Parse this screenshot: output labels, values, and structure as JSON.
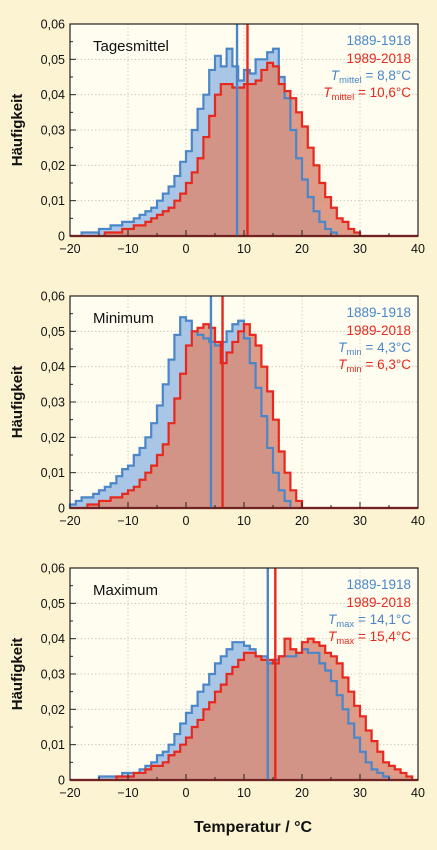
{
  "colors": {
    "period_1": "#4a86c8",
    "period_2": "#e8281e",
    "fill_1": "#a9c6e6",
    "fill_2": "#d88b75",
    "background": "#fbf3d2",
    "plot_background": "#fffdf0"
  },
  "xlabel": "Temperatur / °C",
  "chart_data": [
    {
      "type": "histogram",
      "panel_title": "Tagesmittel",
      "ylabel": "Häufigkeit",
      "xlim": [
        -20,
        40
      ],
      "ylim": [
        0,
        0.06
      ],
      "xticks": [
        "−20",
        "−10",
        "0",
        "10",
        "20",
        "30",
        "40"
      ],
      "yticks": [
        "0",
        "0,01",
        "0,02",
        "0,03",
        "0,04",
        "0,05",
        "0,06"
      ],
      "legend": {
        "line1": "1889-1918",
        "line2": "1989-2018",
        "sym": "T",
        "sub": "mittel",
        "mean1_text": " = 8,8°C",
        "mean2_text": " = 10,6°C"
      },
      "bin_start": -20,
      "bin_width": 1,
      "series": [
        {
          "values": [
            0,
            0,
            0.001,
            0.001,
            0.001,
            0.002,
            0.002,
            0.003,
            0.003,
            0.004,
            0.004,
            0.005,
            0.006,
            0.007,
            0.008,
            0.01,
            0.012,
            0.014,
            0.017,
            0.021,
            0.024,
            0.03,
            0.036,
            0.04,
            0.047,
            0.051,
            0.048,
            0.053,
            0.048,
            0.044,
            0.047,
            0.046,
            0.05,
            0.05,
            0.052,
            0.053,
            0.045,
            0.039,
            0.03,
            0.022,
            0.016,
            0.011,
            0.007,
            0.004,
            0.002,
            0.001,
            0,
            0,
            0,
            0,
            0,
            0,
            0,
            0,
            0,
            0,
            0,
            0,
            0,
            0
          ],
          "mean": 8.8
        },
        {
          "values": [
            0,
            0,
            0,
            0,
            0,
            0,
            0.001,
            0.001,
            0.001,
            0.002,
            0.002,
            0.003,
            0.003,
            0.004,
            0.005,
            0.006,
            0.007,
            0.008,
            0.01,
            0.012,
            0.015,
            0.018,
            0.022,
            0.028,
            0.034,
            0.04,
            0.043,
            0.043,
            0.042,
            0.042,
            0.043,
            0.043,
            0.044,
            0.047,
            0.049,
            0.048,
            0.043,
            0.041,
            0.039,
            0.035,
            0.031,
            0.025,
            0.02,
            0.015,
            0.011,
            0.008,
            0.005,
            0.004,
            0.002,
            0.001,
            0,
            0,
            0,
            0,
            0,
            0,
            0,
            0,
            0,
            0
          ],
          "mean": 10.6
        }
      ]
    },
    {
      "type": "histogram",
      "panel_title": "Minimum",
      "ylabel": "Häufigkeit",
      "xlim": [
        -20,
        40
      ],
      "ylim": [
        0,
        0.06
      ],
      "xticks": [
        "−20",
        "−10",
        "0",
        "10",
        "20",
        "30",
        "40"
      ],
      "yticks": [
        "0",
        "0,01",
        "0,02",
        "0,03",
        "0,04",
        "0,05",
        "0,06"
      ],
      "legend": {
        "line1": "1889-1918",
        "line2": "1989-2018",
        "sym": "T",
        "sub": "min",
        "mean1_text": " = 4,3°C",
        "mean2_text": " = 6,3°C"
      },
      "bin_start": -20,
      "bin_width": 1,
      "series": [
        {
          "values": [
            0.001,
            0.002,
            0.003,
            0.003,
            0.004,
            0.005,
            0.006,
            0.007,
            0.009,
            0.011,
            0.012,
            0.015,
            0.017,
            0.02,
            0.024,
            0.029,
            0.035,
            0.042,
            0.049,
            0.054,
            0.053,
            0.05,
            0.049,
            0.048,
            0.047,
            0.046,
            0.047,
            0.05,
            0.052,
            0.053,
            0.048,
            0.041,
            0.034,
            0.026,
            0.017,
            0.01,
            0.005,
            0.002,
            0,
            0,
            0,
            0,
            0,
            0,
            0,
            0,
            0,
            0,
            0,
            0,
            0,
            0,
            0,
            0,
            0,
            0,
            0,
            0,
            0,
            0
          ],
          "mean": 4.3
        },
        {
          "values": [
            0,
            0,
            0,
            0.001,
            0.001,
            0.002,
            0.002,
            0.003,
            0.003,
            0.004,
            0.005,
            0.006,
            0.008,
            0.01,
            0.012,
            0.015,
            0.018,
            0.024,
            0.031,
            0.038,
            0.046,
            0.05,
            0.051,
            0.052,
            0.051,
            0.047,
            0.041,
            0.044,
            0.047,
            0.05,
            0.052,
            0.049,
            0.046,
            0.04,
            0.033,
            0.025,
            0.016,
            0.01,
            0.005,
            0.002,
            0,
            0,
            0,
            0,
            0,
            0,
            0,
            0,
            0,
            0,
            0,
            0,
            0,
            0,
            0,
            0,
            0,
            0,
            0,
            0
          ],
          "mean": 6.3
        }
      ]
    },
    {
      "type": "histogram",
      "panel_title": "Maximum",
      "ylabel": "Häufigkeit",
      "xlim": [
        -20,
        40
      ],
      "ylim": [
        0,
        0.06
      ],
      "xticks": [
        "−20",
        "−10",
        "0",
        "10",
        "20",
        "30",
        "40"
      ],
      "yticks": [
        "0",
        "0,01",
        "0,02",
        "0,03",
        "0,04",
        "0,05",
        "0,06"
      ],
      "legend": {
        "line1": "1889-1918",
        "line2": "1989-2018",
        "sym": "T",
        "sub": "max",
        "mean1_text": " = 14,1°C",
        "mean2_text": " = 15,4°C"
      },
      "bin_start": -20,
      "bin_width": 1,
      "series": [
        {
          "values": [
            0,
            0,
            0,
            0,
            0,
            0.001,
            0.001,
            0.001,
            0.001,
            0.002,
            0.002,
            0.002,
            0.003,
            0.004,
            0.005,
            0.007,
            0.008,
            0.01,
            0.013,
            0.016,
            0.019,
            0.021,
            0.025,
            0.027,
            0.03,
            0.033,
            0.035,
            0.037,
            0.039,
            0.039,
            0.038,
            0.037,
            0.035,
            0.035,
            0.033,
            0.034,
            0.035,
            0.035,
            0.035,
            0.036,
            0.037,
            0.036,
            0.036,
            0.033,
            0.031,
            0.028,
            0.024,
            0.02,
            0.016,
            0.012,
            0.008,
            0.005,
            0.003,
            0.002,
            0.001,
            0,
            0,
            0,
            0,
            0
          ],
          "mean": 14.1
        },
        {
          "values": [
            0,
            0,
            0,
            0,
            0,
            0,
            0,
            0,
            0.001,
            0.001,
            0.001,
            0.002,
            0.002,
            0.003,
            0.004,
            0.004,
            0.005,
            0.007,
            0.008,
            0.01,
            0.012,
            0.015,
            0.017,
            0.02,
            0.022,
            0.025,
            0.027,
            0.03,
            0.032,
            0.034,
            0.036,
            0.036,
            0.035,
            0.034,
            0.034,
            0.033,
            0.035,
            0.04,
            0.037,
            0.036,
            0.039,
            0.04,
            0.039,
            0.038,
            0.036,
            0.035,
            0.033,
            0.029,
            0.025,
            0.021,
            0.018,
            0.014,
            0.011,
            0.008,
            0.005,
            0.004,
            0.003,
            0.002,
            0.001,
            0
          ],
          "mean": 15.4
        }
      ]
    }
  ]
}
